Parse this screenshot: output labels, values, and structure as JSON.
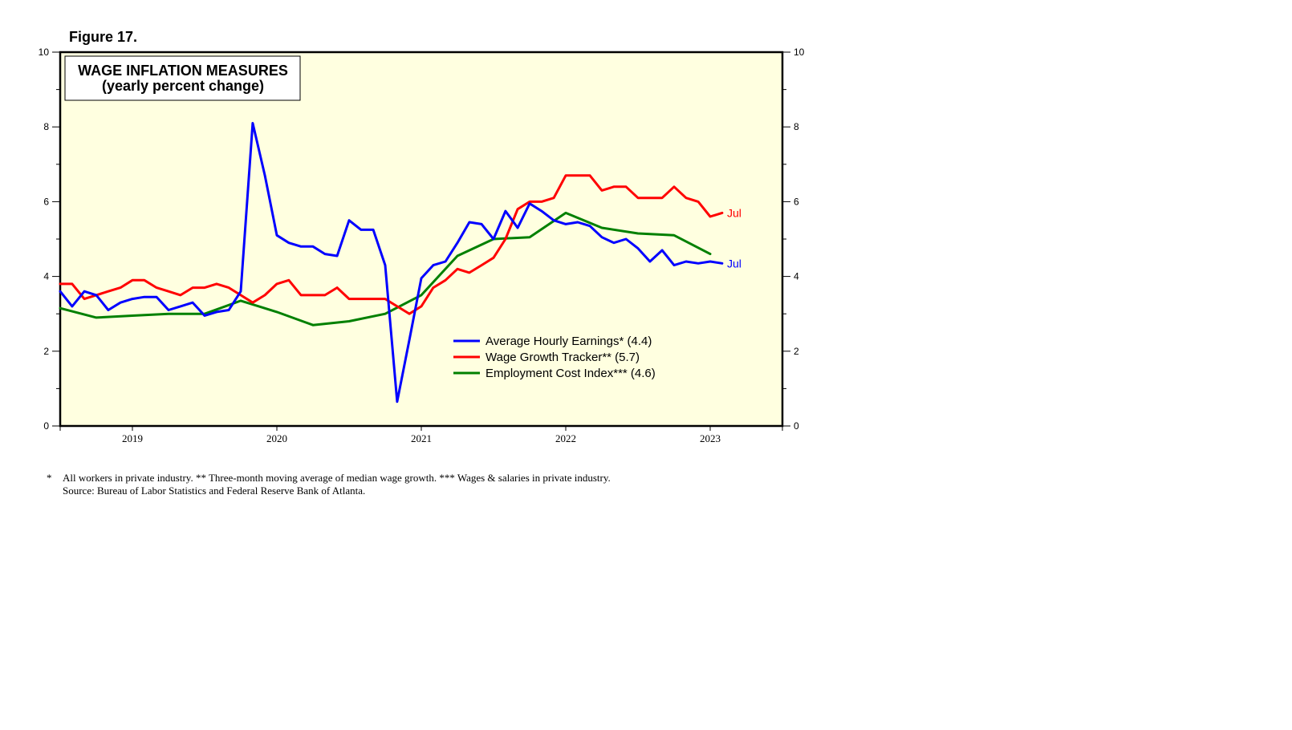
{
  "figure_label": "Figure 17.",
  "footnotes": {
    "marker": "*",
    "line1": "All workers in private industry.  ** Three-month moving average of median wage growth.  *** Wages & salaries in private industry.",
    "line2": "Source: Bureau of Labor Statistics and Federal Reserve Bank of Atlanta."
  },
  "colors": {
    "plot_background": "#ffffe0",
    "ahe": "#0000ff",
    "wgt": "#ff0000",
    "eci": "#008000"
  },
  "chart_data": {
    "type": "line",
    "title": "WAGE INFLATION MEASURES",
    "subtitle": "(yearly percent change)",
    "ylim": [
      0,
      10
    ],
    "y_ticks": [
      "0",
      "2",
      "4",
      "6",
      "8",
      "10"
    ],
    "xlim": [
      2018.5,
      2023.5
    ],
    "x_tick_labels": [
      "2019",
      "2020",
      "2021",
      "2022",
      "2023"
    ],
    "legend_position": "center-right",
    "end_label": "Jul",
    "series": [
      {
        "name": "Average Hourly Earnings* (4.4)",
        "key": "ahe",
        "color": "#0000ff",
        "x": [
          2018.5,
          2018.583,
          2018.667,
          2018.75,
          2018.833,
          2018.917,
          2019.0,
          2019.083,
          2019.167,
          2019.25,
          2019.333,
          2019.417,
          2019.5,
          2019.583,
          2019.667,
          2019.75,
          2019.833,
          2019.917,
          2020.0,
          2020.083,
          2020.167,
          2020.25,
          2020.333,
          2020.417,
          2020.5,
          2020.583,
          2020.667,
          2020.75,
          2020.833,
          2020.917,
          2021.0,
          2021.083,
          2021.167,
          2021.25,
          2021.333,
          2021.417,
          2021.5,
          2021.583,
          2021.667,
          2021.75,
          2021.833,
          2021.917,
          2022.0,
          2022.083,
          2022.167,
          2022.25,
          2022.333,
          2022.417,
          2022.5,
          2022.583,
          2022.667,
          2022.75,
          2022.833,
          2022.917,
          2023.0,
          2023.083
        ],
        "values": [
          3.6,
          3.2,
          3.6,
          3.5,
          3.1,
          3.3,
          3.4,
          3.45,
          3.45,
          3.1,
          3.2,
          3.3,
          2.95,
          3.05,
          3.1,
          3.6,
          8.1,
          6.7,
          5.1,
          4.9,
          4.8,
          4.8,
          4.6,
          4.55,
          5.5,
          5.25,
          5.25,
          4.3,
          0.65,
          2.3,
          3.95,
          4.3,
          4.4,
          4.9,
          5.45,
          5.4,
          5.0,
          5.75,
          5.3,
          5.95,
          5.75,
          5.5,
          5.4,
          5.45,
          5.35,
          5.05,
          4.9,
          5.0,
          4.75,
          4.4,
          4.7,
          4.3,
          4.4,
          4.35,
          4.4,
          4.35
        ]
      },
      {
        "name": "Wage Growth Tracker** (5.7)",
        "key": "wgt",
        "color": "#ff0000",
        "x": [
          2018.5,
          2018.583,
          2018.667,
          2018.75,
          2018.833,
          2018.917,
          2019.0,
          2019.083,
          2019.167,
          2019.25,
          2019.333,
          2019.417,
          2019.5,
          2019.583,
          2019.667,
          2019.75,
          2019.833,
          2019.917,
          2020.0,
          2020.083,
          2020.167,
          2020.25,
          2020.333,
          2020.417,
          2020.5,
          2020.583,
          2020.667,
          2020.75,
          2020.833,
          2020.917,
          2021.0,
          2021.083,
          2021.167,
          2021.25,
          2021.333,
          2021.417,
          2021.5,
          2021.583,
          2021.667,
          2021.75,
          2021.833,
          2021.917,
          2022.0,
          2022.083,
          2022.167,
          2022.25,
          2022.333,
          2022.417,
          2022.5,
          2022.583,
          2022.667,
          2022.75,
          2022.833,
          2022.917,
          2023.0,
          2023.083
        ],
        "values": [
          3.8,
          3.8,
          3.4,
          3.5,
          3.6,
          3.7,
          3.9,
          3.9,
          3.7,
          3.6,
          3.5,
          3.7,
          3.7,
          3.8,
          3.7,
          3.5,
          3.3,
          3.5,
          3.8,
          3.9,
          3.5,
          3.5,
          3.5,
          3.7,
          3.4,
          3.4,
          3.4,
          3.4,
          3.2,
          3.0,
          3.2,
          3.7,
          3.9,
          4.2,
          4.1,
          4.3,
          4.5,
          5.0,
          5.8,
          6.0,
          6.0,
          6.1,
          6.7,
          6.7,
          6.7,
          6.3,
          6.4,
          6.4,
          6.1,
          6.1,
          6.1,
          6.4,
          6.1,
          6.0,
          5.6,
          5.7
        ]
      },
      {
        "name": "Employment Cost Index*** (4.6)",
        "key": "eci",
        "color": "#008000",
        "x": [
          2018.5,
          2018.75,
          2019.0,
          2019.25,
          2019.5,
          2019.75,
          2020.0,
          2020.25,
          2020.5,
          2020.75,
          2021.0,
          2021.25,
          2021.5,
          2021.75,
          2022.0,
          2022.25,
          2022.5,
          2022.75,
          2023.0
        ],
        "values": [
          3.15,
          2.9,
          2.95,
          3.0,
          3.0,
          3.35,
          3.05,
          2.7,
          2.8,
          3.0,
          3.5,
          4.55,
          5.0,
          5.05,
          5.7,
          5.3,
          5.15,
          5.1,
          4.6
        ]
      }
    ]
  }
}
